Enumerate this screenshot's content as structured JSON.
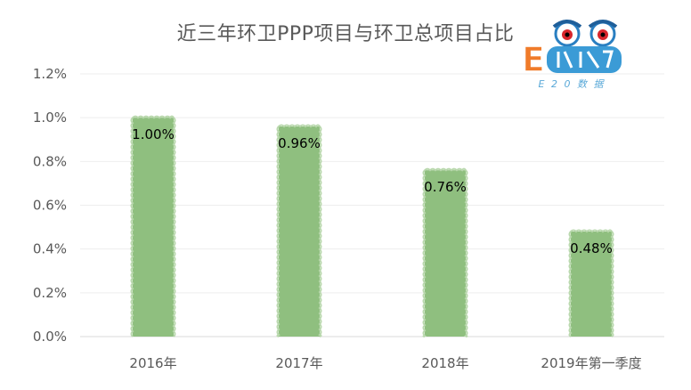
{
  "chart_data": {
    "type": "bar",
    "title": "近三年环卫PPP项目与环卫总项目占比",
    "categories": [
      "2016年",
      "2017年",
      "2018年",
      "2019年第一季度"
    ],
    "values": [
      1.0,
      0.96,
      0.76,
      0.48
    ],
    "value_labels": [
      "1.00%",
      "0.96%",
      "0.76%",
      "0.48%"
    ],
    "y_ticks": [
      "0.0%",
      "0.2%",
      "0.4%",
      "0.6%",
      "0.8%",
      "1.0%",
      "1.2%"
    ],
    "ylim": [
      0,
      1.2
    ],
    "unit": "%",
    "grid": true,
    "bar_color": "#8fbf7f"
  },
  "logo": {
    "letter": "E",
    "sub_text": "E 2 0 数 据"
  }
}
